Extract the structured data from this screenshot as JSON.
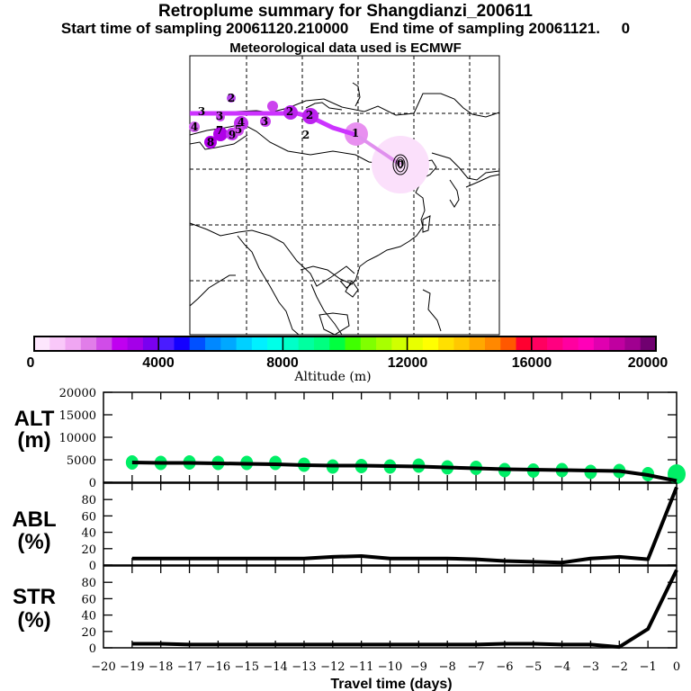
{
  "header": {
    "title": "Retroplume summary for Shangdianzi_200611",
    "subtitle": "Start time of sampling 20061120.210000     End time of sampling 20061121.     0",
    "met_line": "Meteorological data used is ECMWF"
  },
  "map": {
    "plume_labels": [
      {
        "label": "0",
        "day": 0
      },
      {
        "label": "1",
        "day": -1
      },
      {
        "label": "2",
        "day": -2
      },
      {
        "label": "3",
        "day": -3
      },
      {
        "label": "4",
        "day": -4
      },
      {
        "label": "5",
        "day": -5
      },
      {
        "label": "7",
        "day": -7
      },
      {
        "label": "8",
        "day": -8
      },
      {
        "label": "9",
        "day": -9
      }
    ],
    "plume_color": "#cc33ff",
    "halo_color": "#f8d8f8"
  },
  "colorbar": {
    "label": "Altitude (m)",
    "ticks": [
      "0",
      "4000",
      "8000",
      "12000",
      "16000",
      "20000"
    ],
    "colors": [
      "#fde6fd",
      "#f9c8f9",
      "#f0a6f2",
      "#e17de9",
      "#d04ce8",
      "#c000f0",
      "#a400e8",
      "#7a00f0",
      "#4a1cff",
      "#1400ff",
      "#0050ff",
      "#0088ff",
      "#00a8ff",
      "#00d0ff",
      "#00f0ff",
      "#00ffe8",
      "#00ffc8",
      "#00ffa0",
      "#00ff80",
      "#00ff40",
      "#40ff00",
      "#80ff00",
      "#a8ff00",
      "#d0ff00",
      "#e8ff00",
      "#ffff00",
      "#ffe000",
      "#ffc800",
      "#ffa800",
      "#ff8800",
      "#ff5800",
      "#ff0030",
      "#ff0060",
      "#ff0080",
      "#ff00a0",
      "#ff00b8",
      "#e000b0",
      "#c000a0",
      "#a00090",
      "#700070"
    ]
  },
  "chart_data": [
    {
      "type": "line",
      "panel": "ALT",
      "ylabel": "ALT\n(m)",
      "ylabel_lines": [
        "ALT",
        "(m)"
      ],
      "ylim": [
        0,
        20000
      ],
      "yticks": [
        "0",
        "5000",
        "10000",
        "15000",
        "20000"
      ],
      "x": [
        -19,
        -18,
        -17,
        -16,
        -15,
        -14,
        -13,
        -12,
        -11,
        -10,
        -9,
        -8,
        -7,
        -6,
        -5,
        -4,
        -3,
        -2,
        -1,
        0
      ],
      "series": [
        {
          "name": "mean altitude",
          "values": [
            4400,
            4300,
            4300,
            4200,
            4100,
            4000,
            3800,
            3700,
            3700,
            3600,
            3500,
            3300,
            3100,
            2900,
            2800,
            2700,
            2600,
            2500,
            1600,
            300
          ]
        }
      ],
      "scatter_spread": [
        {
          "x": -19,
          "y": 4400
        },
        {
          "x": -18,
          "y": 4300
        },
        {
          "x": -17,
          "y": 4400
        },
        {
          "x": -16,
          "y": 4300
        },
        {
          "x": -15,
          "y": 4300
        },
        {
          "x": -14,
          "y": 4300
        },
        {
          "x": -13,
          "y": 3900
        },
        {
          "x": -12,
          "y": 3500
        },
        {
          "x": -11,
          "y": 3600
        },
        {
          "x": -10,
          "y": 3500
        },
        {
          "x": -9,
          "y": 3700
        },
        {
          "x": -8,
          "y": 3300
        },
        {
          "x": -7,
          "y": 3200
        },
        {
          "x": -6,
          "y": 2700
        },
        {
          "x": -5,
          "y": 2600
        },
        {
          "x": -4,
          "y": 2700
        },
        {
          "x": -3,
          "y": 2300
        },
        {
          "x": -2,
          "y": 2500
        },
        {
          "x": -1,
          "y": 1800
        },
        {
          "x": 0,
          "y": 1800
        }
      ],
      "scatter_color": "#00ee66"
    },
    {
      "type": "line",
      "panel": "ABL",
      "ylabel_lines": [
        "ABL",
        "(%)"
      ],
      "ylim": [
        0,
        100
      ],
      "yticks": [
        "0",
        "20",
        "40",
        "60",
        "80"
      ],
      "x": [
        -19,
        -18,
        -17,
        -16,
        -15,
        -14,
        -13,
        -12,
        -11,
        -10,
        -9,
        -8,
        -7,
        -6,
        -5,
        -4,
        -3,
        -2,
        -1,
        0
      ],
      "series": [
        {
          "name": "ABL fraction",
          "values": [
            8,
            8,
            8,
            8,
            8,
            8,
            8,
            10,
            11,
            8,
            8,
            8,
            7,
            5,
            4,
            3,
            8,
            10,
            7,
            95
          ]
        }
      ]
    },
    {
      "type": "line",
      "panel": "STR",
      "ylabel_lines": [
        "STR",
        "(%)"
      ],
      "ylim": [
        0,
        100
      ],
      "yticks": [
        "0",
        "20",
        "40",
        "60",
        "80"
      ],
      "x": [
        -19,
        -18,
        -17,
        -16,
        -15,
        -14,
        -13,
        -12,
        -11,
        -10,
        -9,
        -8,
        -7,
        -6,
        -5,
        -4,
        -3,
        -2,
        -1,
        0
      ],
      "series": [
        {
          "name": "STR fraction",
          "values": [
            5,
            5,
            4,
            4,
            4,
            4,
            4,
            4,
            4,
            4,
            4,
            4,
            4,
            5,
            5,
            4,
            4,
            1,
            23,
            95
          ]
        }
      ],
      "xlabel": "Travel time (days)",
      "xticks": [
        "-20",
        "-19",
        "-18",
        "-17",
        "-16",
        "-15",
        "-14",
        "-13",
        "-12",
        "-11",
        "-10",
        "-9",
        "-8",
        "-7",
        "-6",
        "-5",
        "-4",
        "-3",
        "-2",
        "-1",
        "0"
      ],
      "xlim": [
        -20,
        0
      ]
    }
  ]
}
